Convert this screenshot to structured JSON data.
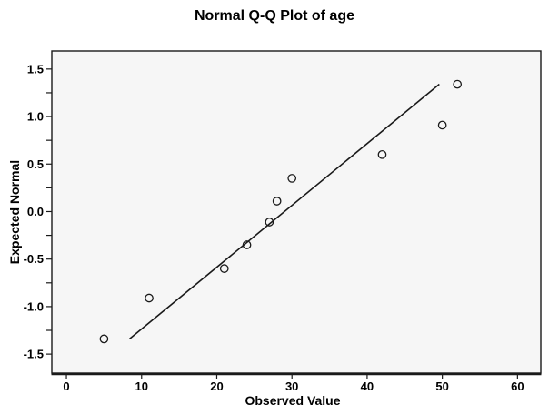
{
  "chart_data": {
    "type": "scatter",
    "subtype": "normal-qq-plot",
    "title": "Normal Q-Q Plot of age",
    "xlabel": "Observed Value",
    "ylabel": "Expected Normal",
    "x_ticks": [
      0,
      10,
      20,
      30,
      40,
      50,
      60
    ],
    "y_ticks": [
      1.5,
      1.0,
      0.5,
      0.0,
      -0.5,
      -1.0,
      -1.5
    ],
    "y_tick_labels": [
      "1.5",
      "1.0",
      "0.5",
      "0.0",
      "-0.5",
      "-1.0",
      "-1.5"
    ],
    "y_minor_tick_step": 0.25,
    "y_minor_range": [
      -1.5,
      1.5
    ],
    "xlim": [
      -1.94,
      63.1
    ],
    "ylim": [
      -1.7,
      1.69
    ],
    "grid": false,
    "legend": false,
    "points": [
      {
        "observed": 5,
        "expected": -1.34
      },
      {
        "observed": 11,
        "expected": -0.91
      },
      {
        "observed": 21,
        "expected": -0.6
      },
      {
        "observed": 24,
        "expected": -0.35
      },
      {
        "observed": 27,
        "expected": -0.11
      },
      {
        "observed": 28,
        "expected": 0.11
      },
      {
        "observed": 30,
        "expected": 0.35
      },
      {
        "observed": 42,
        "expected": 0.6
      },
      {
        "observed": 50,
        "expected": 0.91
      },
      {
        "observed": 52,
        "expected": 1.34
      }
    ],
    "reference_line": {
      "x1": 8.4,
      "y1": -1.34,
      "x2": 49.6,
      "y2": 1.34
    },
    "colors": {
      "background": "#ffffff",
      "plot_background": "#f6f6f6",
      "frame": "#1a1a1a",
      "marker": "#1a1a1a",
      "line": "#1a1a1a",
      "text": "#000000"
    }
  }
}
